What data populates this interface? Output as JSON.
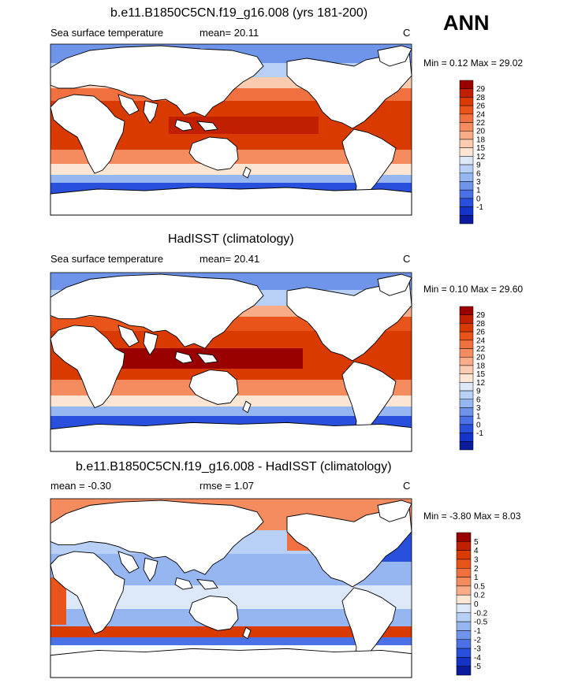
{
  "season": "ANN",
  "panels": [
    {
      "title": "b.e11.B1850C5CN.f19_g16.008 (yrs 181-200)",
      "left": "Sea surface temperature",
      "mean": "mean=  20.11",
      "units": "C",
      "minmax": "Min =   0.12 Max =  29.02"
    },
    {
      "title": "HadISST (climatology)",
      "left": "Sea surface temperature",
      "mean": "mean=  20.41",
      "units": "C",
      "minmax": "Min =   0.10 Max =  29.60"
    },
    {
      "title": "b.e11.B1850C5CN.f19_g16.008 - HadISST (climatology)",
      "left": "mean =  -0.30",
      "mean": "rmse =   1.07",
      "units": "C",
      "minmax": "Min =  -3.80 Max =   8.03"
    }
  ],
  "legends": {
    "sst": {
      "labels": [
        "29",
        "28",
        "26",
        "24",
        "22",
        "20",
        "18",
        "15",
        "12",
        "9",
        "6",
        "3",
        "1",
        "0",
        "-1"
      ],
      "colors": [
        "#990000",
        "#c02000",
        "#d93a00",
        "#e8541a",
        "#f07040",
        "#f48c60",
        "#f8ac88",
        "#fbcbb0",
        "#fde5d3",
        "#dce8f8",
        "#b8d0f5",
        "#95b6f0",
        "#6f95eb",
        "#4a72e6",
        "#2850dc",
        "#1434c8",
        "#0a1c9c"
      ]
    },
    "diff": {
      "labels": [
        "5",
        "4",
        "3",
        "2",
        "1",
        "0.5",
        "0.2",
        "0",
        "-0.2",
        "-0.5",
        "-1",
        "-2",
        "-3",
        "-4",
        "-5"
      ],
      "colors": [
        "#990000",
        "#c02000",
        "#d93a00",
        "#e8541a",
        "#f07040",
        "#f48c60",
        "#f8ac88",
        "#fde5d3",
        "#dce8f8",
        "#b8d0f5",
        "#95b6f0",
        "#6f95eb",
        "#4a72e6",
        "#2850dc",
        "#1434c8",
        "#0a1c9c"
      ]
    }
  },
  "chart_data": [
    {
      "type": "heatmap",
      "title": "b.e11.B1850C5CN.f19_g16.008 (yrs 181-200)",
      "variable": "Sea surface temperature",
      "units": "C",
      "mean": 20.11,
      "min": 0.12,
      "max": 29.02,
      "contour_levels": [
        -1,
        0,
        1,
        3,
        6,
        9,
        12,
        15,
        18,
        20,
        22,
        24,
        26,
        28,
        29
      ]
    },
    {
      "type": "heatmap",
      "title": "HadISST (climatology)",
      "variable": "Sea surface temperature",
      "units": "C",
      "mean": 20.41,
      "min": 0.1,
      "max": 29.6,
      "contour_levels": [
        -1,
        0,
        1,
        3,
        6,
        9,
        12,
        15,
        18,
        20,
        22,
        24,
        26,
        28,
        29
      ]
    },
    {
      "type": "heatmap",
      "title": "b.e11.B1850C5CN.f19_g16.008 - HadISST (climatology)",
      "units": "C",
      "mean": -0.3,
      "rmse": 1.07,
      "min": -3.8,
      "max": 8.03,
      "contour_levels": [
        -5,
        -4,
        -3,
        -2,
        -1,
        -0.5,
        -0.2,
        0,
        0.2,
        0.5,
        1,
        2,
        3,
        4,
        5
      ]
    }
  ]
}
